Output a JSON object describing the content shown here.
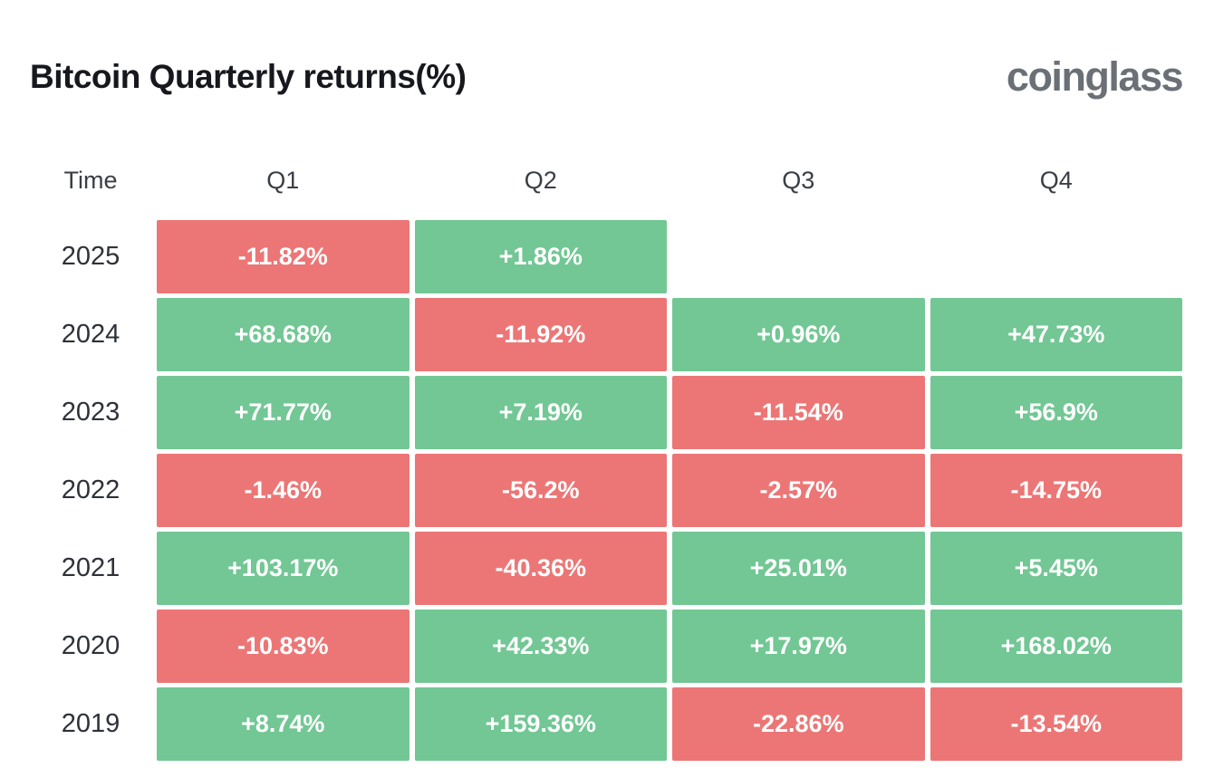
{
  "header": {
    "title": "Bitcoin Quarterly returns(%)",
    "brand": "coinglass"
  },
  "table": {
    "time_header": "Time",
    "quarter_headers": [
      "Q1",
      "Q2",
      "Q3",
      "Q4"
    ],
    "rows": [
      {
        "year": "2025",
        "cells": [
          {
            "text": "-11.82%",
            "state": "negative"
          },
          {
            "text": "+1.86%",
            "state": "positive"
          },
          {
            "text": "",
            "state": "empty"
          },
          {
            "text": "",
            "state": "empty"
          }
        ]
      },
      {
        "year": "2024",
        "cells": [
          {
            "text": "+68.68%",
            "state": "positive"
          },
          {
            "text": "-11.92%",
            "state": "negative"
          },
          {
            "text": "+0.96%",
            "state": "positive"
          },
          {
            "text": "+47.73%",
            "state": "positive"
          }
        ]
      },
      {
        "year": "2023",
        "cells": [
          {
            "text": "+71.77%",
            "state": "positive"
          },
          {
            "text": "+7.19%",
            "state": "positive"
          },
          {
            "text": "-11.54%",
            "state": "negative"
          },
          {
            "text": "+56.9%",
            "state": "positive"
          }
        ]
      },
      {
        "year": "2022",
        "cells": [
          {
            "text": "-1.46%",
            "state": "negative"
          },
          {
            "text": "-56.2%",
            "state": "negative"
          },
          {
            "text": "-2.57%",
            "state": "negative"
          },
          {
            "text": "-14.75%",
            "state": "negative"
          }
        ]
      },
      {
        "year": "2021",
        "cells": [
          {
            "text": "+103.17%",
            "state": "positive"
          },
          {
            "text": "-40.36%",
            "state": "negative"
          },
          {
            "text": "+25.01%",
            "state": "positive"
          },
          {
            "text": "+5.45%",
            "state": "positive"
          }
        ]
      },
      {
        "year": "2020",
        "cells": [
          {
            "text": "-10.83%",
            "state": "negative"
          },
          {
            "text": "+42.33%",
            "state": "positive"
          },
          {
            "text": "+17.97%",
            "state": "positive"
          },
          {
            "text": "+168.02%",
            "state": "positive"
          }
        ]
      },
      {
        "year": "2019",
        "cells": [
          {
            "text": "+8.74%",
            "state": "positive"
          },
          {
            "text": "+159.36%",
            "state": "positive"
          },
          {
            "text": "-22.86%",
            "state": "negative"
          },
          {
            "text": "-13.54%",
            "state": "negative"
          }
        ]
      }
    ]
  },
  "colors": {
    "positive": "#72c794",
    "negative": "#ec7676",
    "title": "#16181d",
    "year": "#2e3238",
    "header": "#3a3e45",
    "brand": "#6b7077"
  },
  "chart_data": {
    "type": "heatmap",
    "title": "Bitcoin Quarterly returns(%)",
    "source_brand": "coinglass",
    "categories": [
      "Q1",
      "Q2",
      "Q3",
      "Q4"
    ],
    "row_labels": [
      "2025",
      "2024",
      "2023",
      "2022",
      "2021",
      "2020",
      "2019"
    ],
    "series": [
      {
        "name": "2025",
        "values": [
          -11.82,
          1.86,
          null,
          null
        ]
      },
      {
        "name": "2024",
        "values": [
          68.68,
          -11.92,
          0.96,
          47.73
        ]
      },
      {
        "name": "2023",
        "values": [
          71.77,
          7.19,
          -11.54,
          56.9
        ]
      },
      {
        "name": "2022",
        "values": [
          -1.46,
          -56.2,
          -2.57,
          -14.75
        ]
      },
      {
        "name": "2021",
        "values": [
          103.17,
          -40.36,
          25.01,
          5.45
        ]
      },
      {
        "name": "2020",
        "values": [
          -10.83,
          42.33,
          17.97,
          168.02
        ]
      },
      {
        "name": "2019",
        "values": [
          8.74,
          159.36,
          -22.86,
          -13.54
        ]
      }
    ],
    "value_format": "signed percent, 2 decimals",
    "color_rule": "positive=green #72c794, negative=red #ec7676, missing=white",
    "legend": "none",
    "grid": "white gaps between cells"
  }
}
